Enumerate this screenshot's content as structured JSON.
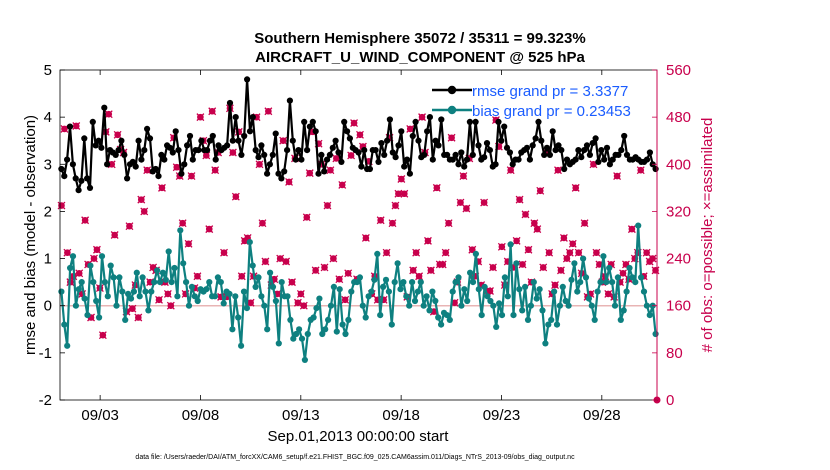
{
  "chart_data": {
    "type": "line",
    "title": "Southern Hemisphere 35072 / 35311 = 99.323%",
    "subtitle": "AIRCRAFT_U_WIND_COMPONENT @ 525 hPa",
    "xlabel": "Sep.01,2013 00:00:00 start",
    "ylabel": "rmse and bias (model - observation)",
    "y2label": "# of obs: o=possible; ×=assimilated",
    "footer": "data file: /Users/raeder/DAI/ATM_forcXX/CAM6_setup/f.e21.FHIST_BGC.f09_025.CAM6assim.011/Diags_NTrS_2013-09/obs_diag_output.nc",
    "xlim": [
      1,
      30.75
    ],
    "ylim": [
      -2,
      5
    ],
    "y2lim": [
      0,
      560
    ],
    "xticks": [
      3,
      8,
      13,
      18,
      23,
      28
    ],
    "xtick_labels": [
      "09/03",
      "09/08",
      "09/13",
      "09/18",
      "09/23",
      "09/28"
    ],
    "yticks": [
      -2,
      -1,
      0,
      1,
      2,
      3,
      4,
      5
    ],
    "ytick_labels": [
      "-2",
      "-1",
      "0",
      "1",
      "2",
      "3",
      "4",
      "5"
    ],
    "y2ticks": [
      0,
      80,
      160,
      240,
      320,
      400,
      480,
      560
    ],
    "y2tick_labels": [
      "0",
      "80",
      "160",
      "240",
      "320",
      "400",
      "480",
      "560"
    ],
    "zero_line": 0,
    "legend_position": "top-right",
    "colors": {
      "rmse": "#000000",
      "bias": "#0e8080",
      "obs": "#c8004c",
      "zero_line": "#e8b4b4",
      "legend_text": "#1a5cff"
    },
    "series": [
      {
        "name": "rmse",
        "legend": "rmse grand pr = 3.3377",
        "values": [
          2.9,
          2.75,
          3.1,
          3.8,
          3.0,
          2.7,
          2.45,
          2.65,
          3.55,
          2.7,
          2.5,
          3.9,
          3.4,
          3.5,
          3.35,
          4.2,
          3.0,
          3.3,
          3.25,
          3.2,
          3.3,
          3.5,
          3.2,
          2.7,
          3.0,
          3.05,
          2.95,
          3.5,
          3.1,
          3.3,
          3.75,
          3.55,
          2.85,
          2.9,
          2.75,
          3.2,
          3.1,
          3.4,
          3.35,
          3.25,
          3.7,
          3.3,
          2.8,
          3.0,
          3.4,
          3.6,
          3.1,
          3.3,
          3.3,
          3.5,
          3.3,
          3.3,
          3.5,
          3.6,
          3.1,
          3.4,
          3.3,
          3.35,
          3.4,
          4.3,
          3.5,
          4.0,
          3.5,
          3.2,
          3.6,
          4.8,
          3.7,
          4.0,
          3.3,
          3.15,
          3.4,
          3.2,
          2.8,
          3.0,
          3.2,
          3.65,
          2.8,
          2.7,
          2.85,
          3.3,
          4.35,
          3.5,
          3.1,
          3.3,
          3.1,
          3.9,
          3.3,
          3.8,
          3.9,
          3.7,
          2.8,
          3.2,
          2.85,
          3.1,
          3.2,
          3.35,
          3.5,
          3.25,
          3.05,
          3.9,
          3.7,
          3.55,
          3.35,
          3.3,
          3.25,
          2.95,
          3.3,
          2.9,
          2.9,
          3.3,
          3.3,
          3.05,
          3.45,
          3.2,
          3.5,
          3.95,
          3.25,
          3.15,
          3.4,
          3.7,
          2.95,
          3.1,
          2.8,
          3.6,
          3.9,
          3.5,
          3.15,
          3.2,
          3.7,
          4.0,
          3.1,
          3.5,
          3.4,
          3.95,
          3.2,
          3.2,
          3.1,
          3.1,
          3.2,
          3.0,
          3.25,
          2.95,
          3.1,
          3.9,
          3.2,
          3.9,
          3.4,
          3.1,
          3.15,
          3.45,
          3.3,
          2.95,
          3.0,
          3.9,
          3.5,
          3.8,
          3.35,
          3.25,
          3.0,
          3.1,
          3.1,
          3.25,
          3.3,
          3.35,
          3.1,
          3.4,
          3.55,
          3.9,
          3.5,
          3.2,
          3.35,
          3.2,
          3.7,
          3.3,
          3.4,
          3.3,
          2.9,
          3.1,
          3.0,
          3.05,
          3.1,
          3.3,
          3.15,
          3.3,
          3.4,
          3.2,
          3.45,
          3.55,
          3.05,
          3.3,
          3.1,
          3.35,
          3.0,
          3.1,
          3.2,
          3.2,
          3.3,
          3.6,
          3.2,
          3.1,
          3.1,
          3.15,
          3.1,
          3.05,
          3.05,
          3.1,
          3.25,
          3.0,
          2.9
        ]
      },
      {
        "name": "bias",
        "legend": "bias grand pr = 0.23453",
        "values": [
          0.3,
          -0.4,
          -0.85,
          0.8,
          1.05,
          0.0,
          0.35,
          0.5,
          0.15,
          -0.2,
          0.85,
          0.5,
          0.1,
          -0.25,
          1.05,
          0.5,
          0.2,
          0.85,
          0.6,
          0.0,
          0.6,
          0.3,
          -0.3,
          0.25,
          0.15,
          0.3,
          0.7,
          0.2,
          0.6,
          0.3,
          -0.1,
          0.3,
          0.5,
          0.75,
          0.5,
          0.7,
          0.55,
          1.15,
          0.5,
          0.8,
          0.2,
          1.6,
          0.9,
          0.5,
          0.0,
          0.4,
          0.2,
          0.1,
          0.35,
          0.3,
          0.35,
          0.5,
          0.2,
          0.2,
          0.6,
          0.5,
          0.05,
          0.3,
          0.25,
          -0.5,
          0.2,
          -0.25,
          -0.85,
          0.3,
          -0.05,
          1.35,
          0.85,
          0.4,
          0.6,
          0.2,
          0.0,
          -0.5,
          0.7,
          0.4,
          0.1,
          -0.8,
          0.5,
          0.2,
          0.2,
          -0.3,
          -0.7,
          -0.6,
          -0.5,
          -0.7,
          -1.15,
          -0.6,
          -0.3,
          -0.25,
          -0.05,
          0.15,
          -0.6,
          -0.5,
          -0.3,
          0.0,
          0.4,
          -0.55,
          0.35,
          -0.4,
          -0.6,
          -0.3,
          0.3,
          0.5,
          0.5,
          0.6,
          0.0,
          -0.25,
          0.2,
          0.3,
          0.55,
          1.1,
          -0.2,
          0.4,
          0.55,
          0.3,
          -0.4,
          0.5,
          0.9,
          0.35,
          0.5,
          0.2,
          0.0,
          0.5,
          0.1,
          0.3,
          0.5,
          0.0,
          0.2,
          -0.1,
          0.3,
          0.1,
          -0.25,
          -0.4,
          -0.15,
          -0.2,
          -0.3,
          0.3,
          0.5,
          0.6,
          0.0,
          0.35,
          0.1,
          0.7,
          0.5,
          1.1,
          0.35,
          -0.2,
          0.4,
          0.2,
          0.1,
          0.0,
          -0.45,
          0.05,
          -0.2,
          0.6,
          0.2,
          1.3,
          -0.2,
          0.9,
          0.35,
          -0.1,
          0.4,
          -0.3,
          0.0,
          0.5,
          0.15,
          0.35,
          -0.1,
          -0.8,
          -0.4,
          -0.3,
          0.3,
          -0.4,
          0.0,
          0.4,
          0.1,
          0.0,
          0.55,
          0.9,
          0.3,
          0.5,
          1.0,
          0.6,
          0.15,
          0.0,
          -0.3,
          0.3,
          0.5,
          1.05,
          0.5,
          0.8,
          0.5,
          0.0,
          0.6,
          -0.3,
          -0.1,
          0.3,
          0.8,
          0.6,
          0.5,
          1.7,
          0.6,
          0.3,
          0.0,
          -0.2,
          0.0,
          -0.6
        ]
      },
      {
        "name": "obs_possible",
        "values": [
          330,
          460,
          250,
          200,
          210,
          465,
          215,
          180,
          305,
          230,
          140,
          240,
          255,
          190,
          110,
          455,
          485,
          400,
          280,
          450,
          425,
          420,
          150,
          295,
          155,
          195,
          140,
          340,
          320,
          390,
          200,
          225,
          220,
          170,
          360,
          200,
          180,
          160,
          445,
          395,
          380,
          300,
          180,
          265,
          380,
          190,
          210,
          480,
          440,
          415,
          290,
          490,
          390,
          420,
          175,
          250,
          175,
          495,
          420,
          345,
          455,
          210,
          270,
          275,
          165,
          210,
          480,
          400,
          300,
          235,
          490,
          195,
          205,
          180,
          240,
          440,
          235,
          370,
          200,
          410,
          165,
          180,
          160,
          310,
          385,
          455,
          220,
          435,
          400,
          225,
          330,
          390,
          240,
          410,
          205,
          365,
          170,
          215,
          415,
          470,
          205,
          450,
          430,
          275,
          405,
          180,
          210,
          170,
          305,
          170,
          250,
          445,
          300,
          330,
          350,
          375,
          350,
          175,
          460,
          220,
          250,
          210,
          480,
          420,
          270,
          220,
          150,
          360,
          230,
          230,
          250,
          300,
          445,
          165,
          200,
          335,
          380,
          325,
          410,
          255,
          210,
          235,
          195,
          335,
          185,
          185,
          225,
          475,
          430,
          260,
          195,
          235,
          390,
          225,
          270,
          340,
          230,
          315,
          255,
          200,
          300,
          290,
          355,
          225,
          420,
          250,
          180,
          195,
          390,
          220,
          275,
          240,
          250,
          265,
          360,
          250,
          215,
          300,
          175,
          180,
          400,
          250,
          230,
          200,
          210,
          180,
          230,
          175,
          380,
          200,
          215,
          230,
          205,
          290,
          240,
          250,
          390,
          210,
          250,
          235,
          240,
          220
        ]
      }
    ]
  }
}
